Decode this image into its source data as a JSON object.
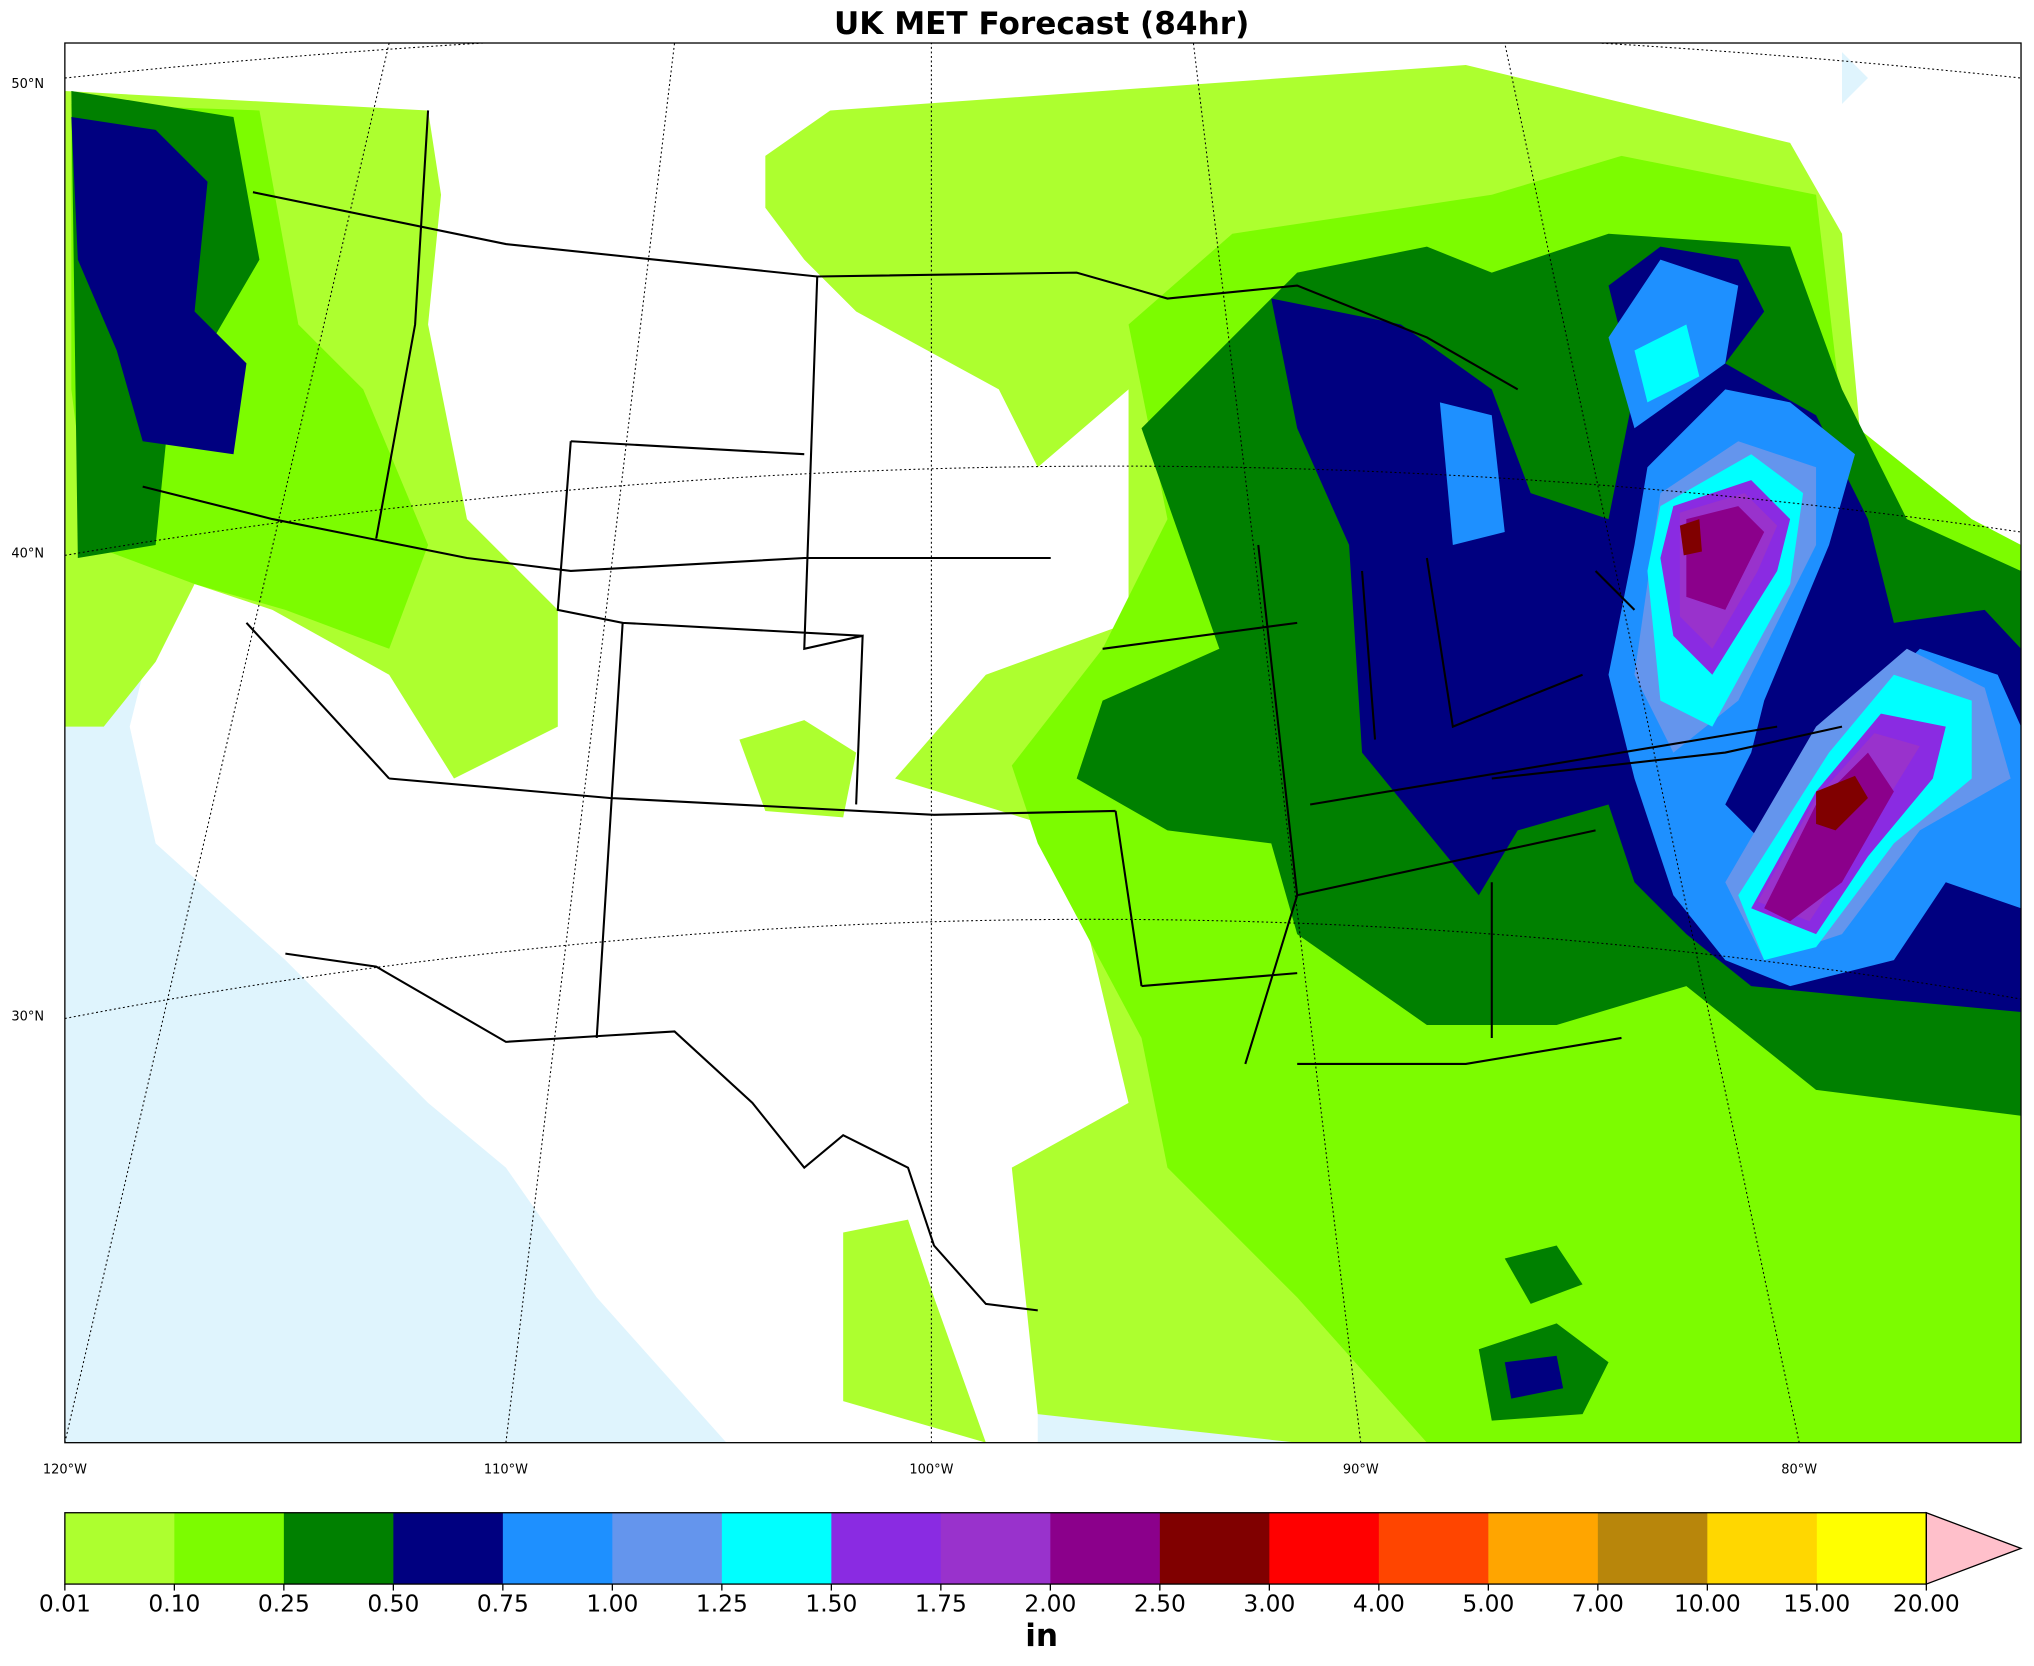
{
  "title": "UK MET Forecast (84hr)",
  "map": {
    "lat_labels": [
      "50°N",
      "40°N",
      "30°N"
    ],
    "lon_labels": [
      "120°W",
      "110°W",
      "100°W",
      "90°W",
      "80°W"
    ]
  },
  "colorbar": {
    "ticks": [
      {
        "value": 0.01,
        "label": "0.01"
      },
      {
        "value": 0.1,
        "label": "0.10"
      },
      {
        "value": 0.25,
        "label": "0.25"
      },
      {
        "value": 0.5,
        "label": "0.50"
      },
      {
        "value": 0.75,
        "label": "0.75"
      },
      {
        "value": 1,
        "label": "1.00"
      },
      {
        "value": 1.25,
        "label": "1.25"
      },
      {
        "value": 1.5,
        "label": "1.50"
      },
      {
        "value": 1.75,
        "label": "1.75"
      },
      {
        "value": 2,
        "label": "2.00"
      },
      {
        "value": 2.5,
        "label": "2.50"
      },
      {
        "value": 3,
        "label": "3.00"
      },
      {
        "value": 4,
        "label": "4.00"
      },
      {
        "value": 5,
        "label": "5.00"
      },
      {
        "value": 7,
        "label": "7.00"
      },
      {
        "value": 10,
        "label": "10.00"
      },
      {
        "value": 15,
        "label": "15.00"
      },
      {
        "value": 20,
        "label": "20.00"
      }
    ],
    "colors": [
      "#adff2f",
      "#7cfc00",
      "#008000",
      "#000080",
      "#1e90ff",
      "#6495ed",
      "#00ffff",
      "#8a2be2",
      "#9932cc",
      "#8b008b",
      "#800000",
      "#ff0000",
      "#ff4500",
      "#ffa500",
      "#b8860b",
      "#ffd700",
      "#ffff00"
    ],
    "extend_color": "#ffc0cb",
    "unit": "in"
  }
}
